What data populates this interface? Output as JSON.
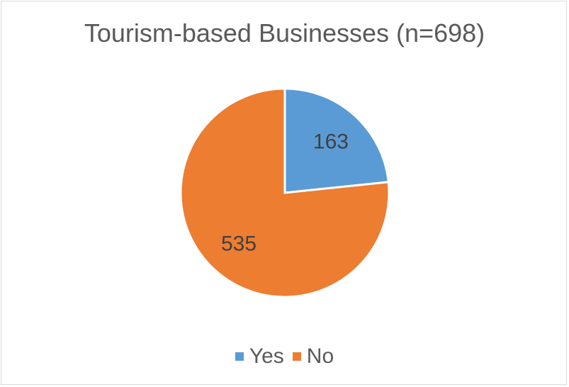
{
  "chart_data": {
    "type": "pie",
    "title": "Tourism-based Businesses (n=698)",
    "categories": [
      "Yes",
      "No"
    ],
    "values": [
      163,
      535
    ],
    "colors": [
      "#5b9bd5",
      "#ed7d31"
    ],
    "data_labels": [
      "163",
      "535"
    ],
    "legend_position": "bottom",
    "start_angle": "12 o'clock, clockwise"
  }
}
